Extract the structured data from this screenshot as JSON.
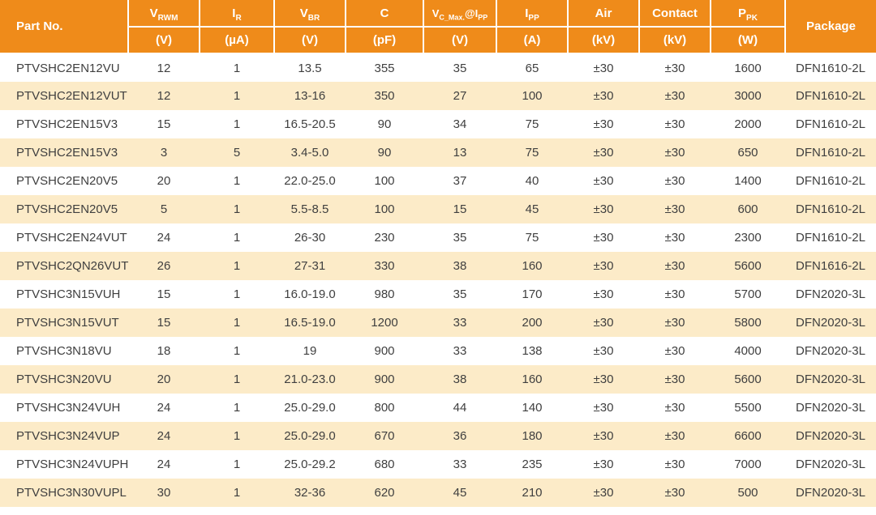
{
  "colors": {
    "header_bg": "#EF8B1A",
    "header_text": "#FFFFFF",
    "row_odd_bg": "#FFFFFF",
    "row_even_bg": "#FCEBC8",
    "body_text": "#3F3F3F"
  },
  "table": {
    "header": {
      "part_no": "Part No.",
      "package": "Package",
      "columns": [
        {
          "main": "V",
          "sub": "RWM",
          "main2": "",
          "sub2": "",
          "unit": "(V)"
        },
        {
          "main": "I",
          "sub": "R",
          "main2": "",
          "sub2": "",
          "unit": "(µA)"
        },
        {
          "main": "V",
          "sub": "BR",
          "main2": "",
          "sub2": "",
          "unit": "(V)"
        },
        {
          "main": "C",
          "sub": "",
          "main2": "",
          "sub2": "",
          "unit": "(pF)"
        },
        {
          "main": "V",
          "sub": "C_Max.",
          "main2": "@I",
          "sub2": "PP",
          "unit": "(V)"
        },
        {
          "main": "I",
          "sub": "PP",
          "main2": "",
          "sub2": "",
          "unit": "(A)"
        },
        {
          "main": "Air",
          "sub": "",
          "main2": "",
          "sub2": "",
          "unit": "(kV)"
        },
        {
          "main": "Contact",
          "sub": "",
          "main2": "",
          "sub2": "",
          "unit": "(kV)"
        },
        {
          "main": "P",
          "sub": "PK",
          "main2": "",
          "sub2": "",
          "unit": "(W)"
        }
      ]
    },
    "rows": [
      [
        "PTVSHC2EN12VU",
        "12",
        "1",
        "13.5",
        "355",
        "35",
        "65",
        "±30",
        "±30",
        "1600",
        "DFN1610-2L"
      ],
      [
        "PTVSHC2EN12VUT",
        "12",
        "1",
        "13-16",
        "350",
        "27",
        "100",
        "±30",
        "±30",
        "3000",
        "DFN1610-2L"
      ],
      [
        "PTVSHC2EN15V3",
        "15",
        "1",
        "16.5-20.5",
        "90",
        "34",
        "75",
        "±30",
        "±30",
        "2000",
        "DFN1610-2L"
      ],
      [
        "PTVSHC2EN15V3",
        "3",
        "5",
        "3.4-5.0",
        "90",
        "13",
        "75",
        "±30",
        "±30",
        "650",
        "DFN1610-2L"
      ],
      [
        "PTVSHC2EN20V5",
        "20",
        "1",
        "22.0-25.0",
        "100",
        "37",
        "40",
        "±30",
        "±30",
        "1400",
        "DFN1610-2L"
      ],
      [
        "PTVSHC2EN20V5",
        "5",
        "1",
        "5.5-8.5",
        "100",
        "15",
        "45",
        "±30",
        "±30",
        "600",
        "DFN1610-2L"
      ],
      [
        "PTVSHC2EN24VUT",
        "24",
        "1",
        "26-30",
        "230",
        "35",
        "75",
        "±30",
        "±30",
        "2300",
        "DFN1610-2L"
      ],
      [
        "PTVSHC2QN26VUT",
        "26",
        "1",
        "27-31",
        "330",
        "38",
        "160",
        "±30",
        "±30",
        "5600",
        "DFN1616-2L"
      ],
      [
        "PTVSHC3N15VUH",
        "15",
        "1",
        "16.0-19.0",
        "980",
        "35",
        "170",
        "±30",
        "±30",
        "5700",
        "DFN2020-3L"
      ],
      [
        "PTVSHC3N15VUT",
        "15",
        "1",
        "16.5-19.0",
        "1200",
        "33",
        "200",
        "±30",
        "±30",
        "5800",
        "DFN2020-3L"
      ],
      [
        "PTVSHC3N18VU",
        "18",
        "1",
        "19",
        "900",
        "33",
        "138",
        "±30",
        "±30",
        "4000",
        "DFN2020-3L"
      ],
      [
        "PTVSHC3N20VU",
        "20",
        "1",
        "21.0-23.0",
        "900",
        "38",
        "160",
        "±30",
        "±30",
        "5600",
        "DFN2020-3L"
      ],
      [
        "PTVSHC3N24VUH",
        "24",
        "1",
        "25.0-29.0",
        "800",
        "44",
        "140",
        "±30",
        "±30",
        "5500",
        "DFN2020-3L"
      ],
      [
        "PTVSHC3N24VUP",
        "24",
        "1",
        "25.0-29.0",
        "670",
        "36",
        "180",
        "±30",
        "±30",
        "6600",
        "DFN2020-3L"
      ],
      [
        "PTVSHC3N24VUPH",
        "24",
        "1",
        "25.0-29.2",
        "680",
        "33",
        "235",
        "±30",
        "±30",
        "7000",
        "DFN2020-3L"
      ],
      [
        "PTVSHC3N30VUPL",
        "30",
        "1",
        "32-36",
        "620",
        "45",
        "210",
        "±30",
        "±30",
        "500",
        "DFN2020-3L"
      ]
    ]
  }
}
